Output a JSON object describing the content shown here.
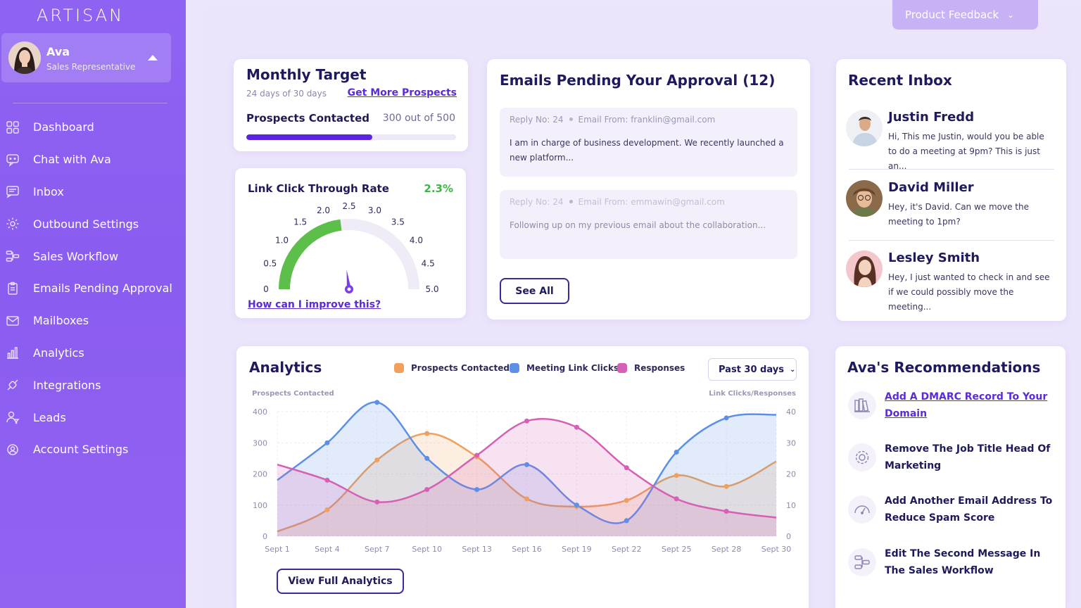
{
  "app": {
    "logo": "ARTISAN"
  },
  "user": {
    "name": "Ava",
    "role": "Sales Representative"
  },
  "sidebar": {
    "items": [
      {
        "label": "Dashboard",
        "icon": "grid-icon"
      },
      {
        "label": "Chat with Ava",
        "icon": "chat-icon"
      },
      {
        "label": "Inbox",
        "icon": "inbox-icon"
      },
      {
        "label": "Outbound Settings",
        "icon": "gear-icon"
      },
      {
        "label": "Sales Workflow",
        "icon": "workflow-icon"
      },
      {
        "label": "Emails Pending Approval",
        "icon": "clipboard-icon"
      },
      {
        "label": "Mailboxes",
        "icon": "mail-icon"
      },
      {
        "label": "Analytics",
        "icon": "bar-chart-icon"
      },
      {
        "label": "Integrations",
        "icon": "plug-icon"
      },
      {
        "label": "Leads",
        "icon": "user-filter-icon"
      },
      {
        "label": "Account Settings",
        "icon": "user-gear-icon"
      }
    ]
  },
  "header": {
    "feedback_label": "Product Feedback"
  },
  "monthly_target": {
    "title": "Monthly Target",
    "subtitle": "24 days of 30 days",
    "link": "Get More Prospects",
    "metric_label": "Prospects Contacted",
    "metric_value": "300 out of 500",
    "progress_fraction": 0.6
  },
  "ctr": {
    "title": "Link Click Through Rate",
    "value_label": "2.3%",
    "value": 2.3,
    "max": 5.0,
    "ticks": [
      "0",
      "0.5",
      "1.0",
      "1.5",
      "2.0",
      "2.5",
      "3.0",
      "3.5",
      "4.0",
      "4.5",
      "5.0"
    ],
    "link": "How can I improve this?",
    "colors": {
      "fill": "#5cbf4a",
      "track": "#efecf8",
      "needle": "#7b3ee6"
    }
  },
  "emails_pending": {
    "title": "Emails Pending Your Approval (12)",
    "items": [
      {
        "reply": "Reply No: 24",
        "from": "Email From: franklin@gmail.com",
        "body": "I am in charge of business development. We recently launched a new platform..."
      },
      {
        "reply": "Reply No: 24",
        "from": "Email From: emmawin@gmail.com",
        "body": "Following up on my previous email about the collaboration..."
      }
    ],
    "see_all_label": "See All"
  },
  "recent_inbox": {
    "title": "Recent Inbox",
    "items": [
      {
        "name": "Justin Fredd",
        "text": "Hi, This me Justin, would you be able to do a meeting at 9pm? This is just an..."
      },
      {
        "name": "David Miller",
        "text": "Hey, it's David. Can we move the meeting to 1pm?"
      },
      {
        "name": "Lesley Smith",
        "text": "Hey, I just wanted to check in and see if we could possibly move the meeting..."
      }
    ]
  },
  "analytics": {
    "title": "Analytics",
    "range_label": "Past 30 days",
    "left_axis_title": "Prospects Contacted",
    "right_axis_title": "Link Clicks/Responses",
    "view_full_label": "View Full Analytics"
  },
  "chart_data": {
    "type": "area",
    "categories": [
      "Sept 1",
      "Sept 4",
      "Sept 7",
      "Sept 10",
      "Sept 13",
      "Sept 16",
      "Sept 19",
      "Sept 22",
      "Sept 25",
      "Sept 28",
      "Sept 30"
    ],
    "left_ylim": [
      0,
      400
    ],
    "left_ticks": [
      "400",
      "300",
      "200",
      "100",
      "0"
    ],
    "right_ylim": [
      0,
      40
    ],
    "right_ticks": [
      "40",
      "30",
      "20",
      "10",
      "0"
    ],
    "grid": true,
    "legend_position": "top",
    "series": [
      {
        "name": "Prospects Contacted",
        "axis": "left",
        "color": "#f0a05a",
        "values": [
          15,
          85,
          245,
          330,
          255,
          120,
          95,
          115,
          195,
          160,
          240
        ]
      },
      {
        "name": "Meeting Link Clicks",
        "axis": "right",
        "color": "#5c8fe6",
        "values": [
          18,
          30,
          43,
          25,
          15,
          23,
          10,
          5,
          27,
          38,
          39
        ]
      },
      {
        "name": "Responses",
        "axis": "right",
        "color": "#d560b4",
        "values": [
          23,
          18,
          11,
          15,
          26,
          37,
          35,
          22,
          12,
          8,
          6
        ]
      }
    ]
  },
  "recommendations": {
    "title": "Ava's Recommendations",
    "items": [
      {
        "text": "Add A DMARC Record To Your Domain",
        "link": true,
        "icon": "books-icon"
      },
      {
        "text": "Remove The Job Title Head Of Marketing",
        "link": false,
        "icon": "gear-icon"
      },
      {
        "text": "Add Another Email Address To Reduce Spam Score",
        "link": false,
        "icon": "speedometer-icon"
      },
      {
        "text": "Edit The Second Message In The Sales Workflow",
        "link": false,
        "icon": "workflow-icon"
      }
    ]
  }
}
